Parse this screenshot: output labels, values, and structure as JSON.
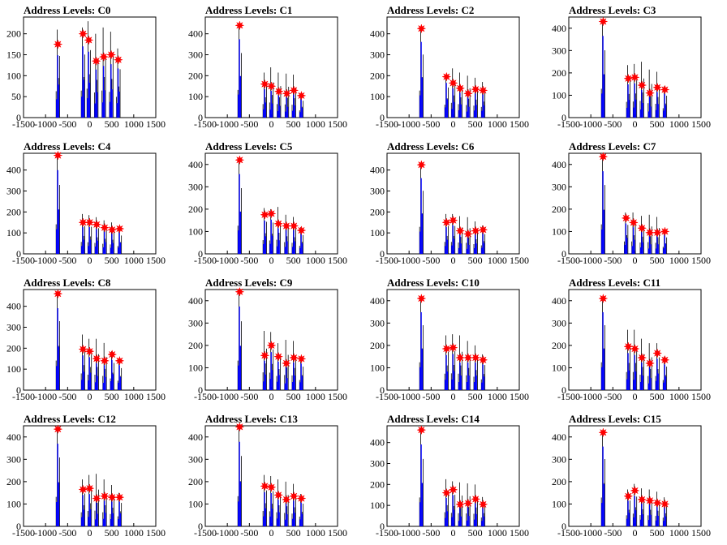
{
  "figure": {
    "colors": {
      "series": "#0000ff",
      "spike": "#000000",
      "marker": "#ff0000",
      "axis": "#000000",
      "background": "#ffffff"
    }
  },
  "chart_data": [
    {
      "type": "bar",
      "title": "Address Levels: C0",
      "xlim": [
        -1500,
        1500
      ],
      "ylim": [
        0,
        240
      ],
      "xticks": [
        "-1500",
        "-1000",
        "-500",
        "0",
        "500",
        "1000",
        "1500"
      ],
      "yticks": [
        "0",
        "50",
        "100",
        "150",
        "200"
      ],
      "series": [
        {
          "name": "",
          "x": [
            -720,
            -150,
            -20,
            150,
            320,
            490,
            650
          ],
          "values": [
            210,
            215,
            230,
            200,
            215,
            205,
            165
          ]
        }
      ],
      "peaks": {
        "x": [
          -720,
          -150,
          -20,
          150,
          320,
          490,
          650
        ],
        "y": [
          175,
          200,
          185,
          135,
          145,
          150,
          138
        ]
      }
    },
    {
      "type": "bar",
      "title": "Address Levels: C1",
      "xlim": [
        -1500,
        1500
      ],
      "ylim": [
        0,
        480
      ],
      "xticks": [
        "-1500",
        "-1000",
        "-500",
        "0",
        "500",
        "1000",
        "1500"
      ],
      "yticks": [
        "0",
        "100",
        "200",
        "300",
        "400"
      ],
      "series": [
        {
          "name": "",
          "x": [
            -720,
            -150,
            0,
            170,
            350,
            510,
            680
          ],
          "values": [
            440,
            215,
            240,
            215,
            210,
            205,
            115
          ]
        }
      ],
      "peaks": {
        "x": [
          -720,
          -150,
          0,
          170,
          350,
          510,
          680
        ],
        "y": [
          440,
          160,
          150,
          125,
          115,
          130,
          105
        ]
      }
    },
    {
      "type": "bar",
      "title": "Address Levels: C2",
      "xlim": [
        -1500,
        1500
      ],
      "ylim": [
        0,
        480
      ],
      "xticks": [
        "-1500",
        "-1000",
        "-500",
        "0",
        "500",
        "1000",
        "1500"
      ],
      "yticks": [
        "0",
        "100",
        "200",
        "300",
        "400"
      ],
      "series": [
        {
          "name": "",
          "x": [
            -720,
            -150,
            0,
            160,
            340,
            510,
            680
          ],
          "values": [
            430,
            205,
            235,
            215,
            200,
            190,
            170
          ]
        }
      ],
      "peaks": {
        "x": [
          -720,
          -150,
          0,
          160,
          340,
          510,
          680
        ],
        "y": [
          425,
          195,
          165,
          140,
          115,
          135,
          130
        ]
      }
    },
    {
      "type": "bar",
      "title": "Address Levels: C3",
      "xlim": [
        -1500,
        1500
      ],
      "ylim": [
        0,
        450
      ],
      "xticks": [
        "-1500",
        "-1000",
        "-500",
        "0",
        "500",
        "1000",
        "1500"
      ],
      "yticks": [
        "0",
        "100",
        "200",
        "300",
        "400"
      ],
      "series": [
        {
          "name": "",
          "x": [
            -720,
            -150,
            0,
            160,
            340,
            510,
            680
          ],
          "values": [
            430,
            235,
            240,
            250,
            215,
            205,
            140
          ]
        }
      ],
      "peaks": {
        "x": [
          -720,
          -150,
          0,
          160,
          340,
          510,
          680
        ],
        "y": [
          430,
          175,
          180,
          145,
          110,
          135,
          125
        ]
      }
    },
    {
      "type": "bar",
      "title": "Address Levels: C4",
      "xlim": [
        -1500,
        1500
      ],
      "ylim": [
        0,
        480
      ],
      "xticks": [
        "-1500",
        "-1000",
        "-500",
        "0",
        "500",
        "1000",
        "1500"
      ],
      "yticks": [
        "0",
        "100",
        "200",
        "300",
        "400"
      ],
      "series": [
        {
          "name": "",
          "x": [
            -720,
            -150,
            0,
            160,
            340,
            510,
            680
          ],
          "values": [
            470,
            190,
            185,
            175,
            160,
            150,
            125
          ]
        }
      ],
      "peaks": {
        "x": [
          -720,
          -150,
          0,
          160,
          340,
          510,
          680
        ],
        "y": [
          470,
          150,
          150,
          140,
          125,
          115,
          120
        ]
      }
    },
    {
      "type": "bar",
      "title": "Address Levels: C5",
      "xlim": [
        -1500,
        1500
      ],
      "ylim": [
        0,
        450
      ],
      "xticks": [
        "-1500",
        "-1000",
        "-500",
        "0",
        "500",
        "1000",
        "1500"
      ],
      "yticks": [
        "0",
        "100",
        "200",
        "300",
        "400"
      ],
      "series": [
        {
          "name": "",
          "x": [
            -720,
            -150,
            0,
            160,
            340,
            510,
            680
          ],
          "values": [
            420,
            205,
            200,
            210,
            175,
            165,
            120
          ]
        }
      ],
      "peaks": {
        "x": [
          -720,
          -150,
          0,
          160,
          340,
          510,
          680
        ],
        "y": [
          420,
          175,
          180,
          135,
          125,
          125,
          105
        ]
      }
    },
    {
      "type": "bar",
      "title": "Address Levels: C6",
      "xlim": [
        -1500,
        1500
      ],
      "ylim": [
        0,
        480
      ],
      "xticks": [
        "-1500",
        "-1000",
        "-500",
        "0",
        "500",
        "1000",
        "1500"
      ],
      "yticks": [
        "0",
        "100",
        "200",
        "300",
        "400"
      ],
      "series": [
        {
          "name": "",
          "x": [
            -720,
            -150,
            0,
            160,
            340,
            510,
            680
          ],
          "values": [
            430,
            190,
            190,
            180,
            175,
            155,
            135
          ]
        }
      ],
      "peaks": {
        "x": [
          -720,
          -150,
          0,
          160,
          340,
          510,
          680
        ],
        "y": [
          425,
          150,
          160,
          110,
          95,
          110,
          115
        ]
      }
    },
    {
      "type": "bar",
      "title": "Address Levels: C7",
      "xlim": [
        -1500,
        1500
      ],
      "ylim": [
        0,
        450
      ],
      "xticks": [
        "-1500",
        "-1000",
        "-500",
        "0",
        "500",
        "1000",
        "1500"
      ],
      "yticks": [
        "0",
        "100",
        "200",
        "300",
        "400"
      ],
      "series": [
        {
          "name": "",
          "x": [
            -720,
            -200,
            -30,
            160,
            340,
            510,
            680
          ],
          "values": [
            440,
            185,
            185,
            170,
            175,
            165,
            105
          ]
        }
      ],
      "peaks": {
        "x": [
          -720,
          -200,
          -30,
          160,
          340,
          510,
          680
        ],
        "y": [
          435,
          160,
          140,
          115,
          95,
          95,
          100
        ]
      }
    },
    {
      "type": "bar",
      "title": "Address Levels: C8",
      "xlim": [
        -1500,
        1500
      ],
      "ylim": [
        0,
        480
      ],
      "xticks": [
        "-1500",
        "-1000",
        "-500",
        "0",
        "500",
        "1000",
        "1500"
      ],
      "yticks": [
        "0",
        "100",
        "200",
        "300",
        "400"
      ],
      "series": [
        {
          "name": "",
          "x": [
            -720,
            -150,
            0,
            160,
            340,
            510,
            680
          ],
          "values": [
            470,
            265,
            245,
            245,
            225,
            185,
            150
          ]
        }
      ],
      "peaks": {
        "x": [
          -720,
          -150,
          0,
          160,
          340,
          510,
          680
        ],
        "y": [
          460,
          195,
          185,
          150,
          140,
          170,
          140
        ]
      }
    },
    {
      "type": "bar",
      "title": "Address Levels: C9",
      "xlim": [
        -1500,
        1500
      ],
      "ylim": [
        0,
        450
      ],
      "xticks": [
        "-1500",
        "-1000",
        "-500",
        "0",
        "500",
        "1000",
        "1500"
      ],
      "yticks": [
        "0",
        "100",
        "200",
        "300",
        "400"
      ],
      "series": [
        {
          "name": "",
          "x": [
            -720,
            -150,
            0,
            160,
            340,
            510,
            680
          ],
          "values": [
            440,
            265,
            260,
            210,
            225,
            220,
            150
          ]
        }
      ],
      "peaks": {
        "x": [
          -720,
          -150,
          0,
          160,
          340,
          510,
          680
        ],
        "y": [
          440,
          155,
          200,
          150,
          120,
          145,
          140
        ]
      }
    },
    {
      "type": "bar",
      "title": "Address Levels: C10",
      "xlim": [
        -1500,
        1500
      ],
      "ylim": [
        0,
        450
      ],
      "xticks": [
        "-1500",
        "-1000",
        "-500",
        "0",
        "500",
        "1000",
        "1500"
      ],
      "yticks": [
        "0",
        "100",
        "200",
        "300",
        "400"
      ],
      "series": [
        {
          "name": "",
          "x": [
            -720,
            -150,
            0,
            160,
            340,
            510,
            680
          ],
          "values": [
            415,
            245,
            250,
            245,
            220,
            200,
            160
          ]
        }
      ],
      "peaks": {
        "x": [
          -720,
          -150,
          0,
          160,
          340,
          510,
          680
        ],
        "y": [
          410,
          185,
          190,
          145,
          145,
          145,
          135
        ]
      }
    },
    {
      "type": "bar",
      "title": "Address Levels: C11",
      "xlim": [
        -1500,
        1500
      ],
      "ylim": [
        0,
        450
      ],
      "xticks": [
        "-1500",
        "-1000",
        "-500",
        "0",
        "500",
        "1000",
        "1500"
      ],
      "yticks": [
        "0",
        "100",
        "200",
        "300",
        "400"
      ],
      "series": [
        {
          "name": "",
          "x": [
            -720,
            -150,
            0,
            160,
            340,
            510,
            680
          ],
          "values": [
            415,
            270,
            270,
            230,
            210,
            210,
            150
          ]
        }
      ],
      "peaks": {
        "x": [
          -720,
          -150,
          0,
          160,
          340,
          510,
          680
        ],
        "y": [
          410,
          195,
          185,
          145,
          120,
          165,
          135
        ]
      }
    },
    {
      "type": "bar",
      "title": "Address Levels: C12",
      "xlim": [
        -1500,
        1500
      ],
      "ylim": [
        0,
        450
      ],
      "xticks": [
        "-1500",
        "-1000",
        "-500",
        "0",
        "500",
        "1000",
        "1500"
      ],
      "yticks": [
        "0",
        "100",
        "200",
        "300",
        "400"
      ],
      "series": [
        {
          "name": "",
          "x": [
            -720,
            -150,
            0,
            160,
            340,
            510,
            680
          ],
          "values": [
            440,
            210,
            230,
            235,
            210,
            185,
            150
          ]
        }
      ],
      "peaks": {
        "x": [
          -720,
          -150,
          0,
          160,
          340,
          510,
          680
        ],
        "y": [
          435,
          165,
          170,
          125,
          135,
          130,
          130
        ]
      }
    },
    {
      "type": "bar",
      "title": "Address Levels: C13",
      "xlim": [
        -1500,
        1500
      ],
      "ylim": [
        0,
        450
      ],
      "xticks": [
        "-1500",
        "-1000",
        "-500",
        "0",
        "500",
        "1000",
        "1500"
      ],
      "yticks": [
        "0",
        "100",
        "200",
        "300",
        "400"
      ],
      "series": [
        {
          "name": "",
          "x": [
            -720,
            -150,
            0,
            160,
            340,
            510,
            680
          ],
          "values": [
            450,
            230,
            225,
            210,
            200,
            190,
            145
          ]
        }
      ],
      "peaks": {
        "x": [
          -720,
          -150,
          0,
          160,
          340,
          510,
          680
        ],
        "y": [
          445,
          180,
          175,
          140,
          120,
          135,
          125
        ]
      }
    },
    {
      "type": "bar",
      "title": "Address Levels: C14",
      "xlim": [
        -1500,
        1500
      ],
      "ylim": [
        0,
        480
      ],
      "xticks": [
        "-1500",
        "-1000",
        "-500",
        "0",
        "500",
        "1000",
        "1500"
      ],
      "yticks": [
        "0",
        "100",
        "200",
        "300",
        "400"
      ],
      "series": [
        {
          "name": "",
          "x": [
            -720,
            -150,
            0,
            160,
            340,
            510,
            680
          ],
          "values": [
            460,
            225,
            215,
            210,
            205,
            200,
            140
          ]
        }
      ],
      "peaks": {
        "x": [
          -720,
          -150,
          0,
          160,
          340,
          510,
          680
        ],
        "y": [
          460,
          160,
          175,
          105,
          110,
          130,
          105
        ]
      }
    },
    {
      "type": "bar",
      "title": "Address Levels: C15",
      "xlim": [
        -1500,
        1500
      ],
      "ylim": [
        0,
        450
      ],
      "xticks": [
        "-1500",
        "-1000",
        "-500",
        "0",
        "500",
        "1000",
        "1500"
      ],
      "yticks": [
        "0",
        "100",
        "200",
        "300",
        "400"
      ],
      "series": [
        {
          "name": "",
          "x": [
            -720,
            -150,
            0,
            160,
            340,
            510,
            680
          ],
          "values": [
            430,
            165,
            190,
            170,
            165,
            155,
            130
          ]
        }
      ],
      "peaks": {
        "x": [
          -720,
          -150,
          0,
          160,
          340,
          510,
          680
        ],
        "y": [
          420,
          135,
          160,
          120,
          115,
          105,
          100
        ]
      }
    }
  ]
}
